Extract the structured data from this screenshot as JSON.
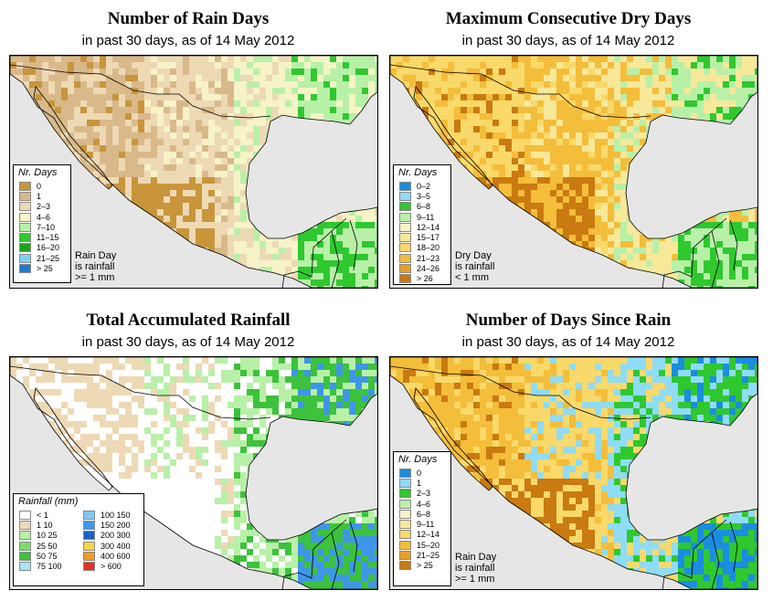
{
  "panels": [
    {
      "title": "Number of Rain Days",
      "subtitle": "in past 30 days, as of  14 May 2012",
      "legend_title": "Nr. Days",
      "legend": [
        {
          "label": "0",
          "color": "#c8953a"
        },
        {
          "label": "1",
          "color": "#d9b98a"
        },
        {
          "label": "2–3",
          "color": "#eed9b5"
        },
        {
          "label": "4–6",
          "color": "#f6f3c7"
        },
        {
          "label": "7–10",
          "color": "#b8f0a8"
        },
        {
          "label": "11–15",
          "color": "#2fc82f"
        },
        {
          "label": "16–20",
          "color": "#1aa31a"
        },
        {
          "label": "21–25",
          "color": "#7fd3f2"
        },
        {
          "label": "> 25",
          "color": "#1a7ad4"
        }
      ],
      "note": [
        "Rain Day",
        "is rainfall",
        ">= 1 mm"
      ],
      "palette": {
        "west": "#d9b98a",
        "core": "#c8953a",
        "mid": "#eed9b5",
        "east": "#f6f3c7",
        "wet": "#b8f0a8",
        "vwet": "#2fc82f"
      }
    },
    {
      "title": "Maximum Consecutive Dry Days",
      "subtitle": "in past 30 days, as of  14 May 2012",
      "legend_title": "Nr. Days",
      "legend": [
        {
          "label": "0–2",
          "color": "#1a8de0"
        },
        {
          "label": "3–5",
          "color": "#8fdcf6"
        },
        {
          "label": "6–8",
          "color": "#2fc82f"
        },
        {
          "label": "9–11",
          "color": "#b8f0a8"
        },
        {
          "label": "12–14",
          "color": "#f6f3c7"
        },
        {
          "label": "15–17",
          "color": "#f7e89a"
        },
        {
          "label": "18–20",
          "color": "#f8d96a"
        },
        {
          "label": "21–23",
          "color": "#f4bd3a"
        },
        {
          "label": "24–26",
          "color": "#e9a023"
        },
        {
          "label": "> 26",
          "color": "#c97a10"
        }
      ],
      "note": [
        "Dry Day",
        "is rainfall",
        "< 1 mm"
      ],
      "palette": {
        "west": "#f8d96a",
        "core": "#c97a10",
        "mid": "#f4bd3a",
        "east": "#f7e89a",
        "wet": "#b8f0a8",
        "vwet": "#2fc82f"
      }
    },
    {
      "title": "Total Accumulated Rainfall",
      "subtitle": "in past 30 days, as of  14 May 2012",
      "legend_title": "Rainfall (mm)",
      "legend": [
        {
          "label": "< 1",
          "color": "#ffffff"
        },
        {
          "label": "1   10",
          "color": "#eed9b5"
        },
        {
          "label": "10   25",
          "color": "#b8f0a8"
        },
        {
          "label": "25   50",
          "color": "#7bdc6b"
        },
        {
          "label": "50   75",
          "color": "#3cc23c"
        },
        {
          "label": "75  100",
          "color": "#a9e6f7"
        },
        {
          "label": "100  150",
          "color": "#7fc8f2"
        },
        {
          "label": "150  200",
          "color": "#3f96e8"
        },
        {
          "label": "200  300",
          "color": "#1a5fc8"
        },
        {
          "label": "300  400",
          "color": "#f7d54a"
        },
        {
          "label": "400  600",
          "color": "#f39b1e"
        },
        {
          "label": "> 600",
          "color": "#e6321e"
        }
      ],
      "palette": {
        "west": "#eed9b5",
        "core": "#ffffff",
        "mid": "#ffffff",
        "east": "#b8f0a8",
        "wet": "#3cc23c",
        "vwet": "#3f96e8"
      }
    },
    {
      "title": "Number of Days Since Rain",
      "subtitle": "in past 30 days, as of  14 May 2012",
      "legend_title": "Nr. Days",
      "legend": [
        {
          "label": "0",
          "color": "#1a8de0"
        },
        {
          "label": "1",
          "color": "#8fdcf6"
        },
        {
          "label": "2–3",
          "color": "#2fc82f"
        },
        {
          "label": "4–6",
          "color": "#b8f0a8"
        },
        {
          "label": "6–8",
          "color": "#f6f3c7"
        },
        {
          "label": "9–11",
          "color": "#f7e89a"
        },
        {
          "label": "12–14",
          "color": "#f8d96a"
        },
        {
          "label": "15–20",
          "color": "#f4bd3a"
        },
        {
          "label": "21–25",
          "color": "#e9a023"
        },
        {
          "label": "> 25",
          "color": "#c97a10"
        }
      ],
      "note": [
        "Rain Day",
        "is rainfall",
        ">= 1 mm"
      ],
      "palette": {
        "west": "#f4bd3a",
        "core": "#c97a10",
        "mid": "#f8d96a",
        "east": "#8fdcf6",
        "wet": "#2fc82f",
        "vwet": "#1a8de0"
      }
    }
  ],
  "colors": {
    "ocean": "#e6e6e6",
    "border": "#000000"
  }
}
